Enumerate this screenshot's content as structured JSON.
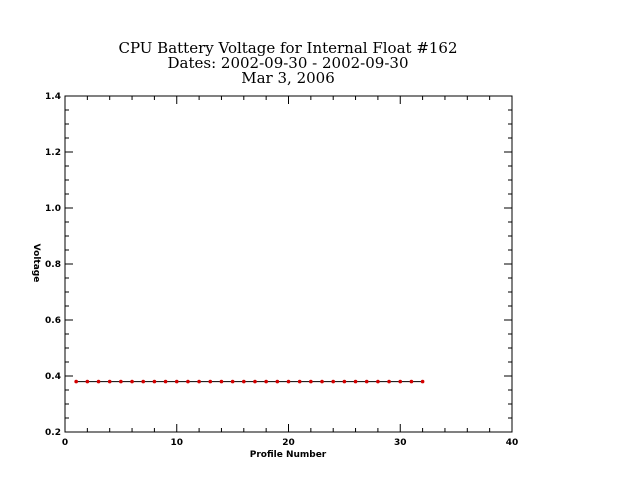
{
  "chart_data": {
    "type": "line",
    "title_lines": [
      "CPU Battery Voltage for Internal Float #162",
      "Dates:  2002-09-30 -  2002-09-30",
      "Mar  3, 2006"
    ],
    "xlabel": "Profile Number",
    "ylabel": "Voltage",
    "xlim": [
      0,
      40
    ],
    "ylim": [
      0.2,
      1.4
    ],
    "xticks": [
      "0",
      "10",
      "20",
      "30",
      "40"
    ],
    "yticks": [
      "0.2",
      "0.4",
      "0.6",
      "0.8",
      "1.0",
      "1.2",
      "1.4"
    ],
    "grid": false,
    "series": [
      {
        "color": "#d40000",
        "line_color": "#000000",
        "x": [
          1,
          2,
          3,
          4,
          5,
          6,
          7,
          8,
          9,
          10,
          11,
          12,
          13,
          14,
          15,
          16,
          17,
          18,
          19,
          20,
          21,
          22,
          23,
          24,
          25,
          26,
          27,
          28,
          29,
          30,
          31,
          32
        ],
        "y": [
          0.38,
          0.38,
          0.38,
          0.38,
          0.38,
          0.38,
          0.38,
          0.38,
          0.38,
          0.38,
          0.38,
          0.38,
          0.38,
          0.38,
          0.38,
          0.38,
          0.38,
          0.38,
          0.38,
          0.38,
          0.38,
          0.38,
          0.38,
          0.38,
          0.38,
          0.38,
          0.38,
          0.38,
          0.38,
          0.38,
          0.38,
          0.38
        ]
      }
    ]
  }
}
